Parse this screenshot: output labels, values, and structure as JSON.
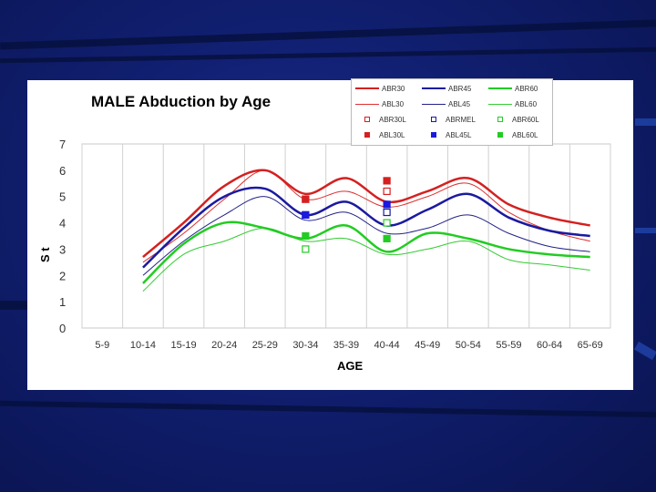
{
  "slide": {
    "background_color": "#101e6e",
    "panel_color": "#ffffff"
  },
  "chart_data": {
    "type": "line",
    "title": "MALE Abduction by Age",
    "xlabel": "AGE",
    "ylabel": "S\nt",
    "categories": [
      "5-9",
      "10-14",
      "15-19",
      "20-24",
      "25-29",
      "30-34",
      "35-39",
      "40-44",
      "45-49",
      "50-54",
      "55-59",
      "60-64",
      "65-69"
    ],
    "yticks": [
      0,
      1,
      2,
      3,
      4,
      5,
      6,
      7
    ],
    "ylim": [
      0,
      7
    ],
    "series": [
      {
        "name": "ABR30",
        "color": "#d42020",
        "width": 2.5,
        "values": [
          null,
          2.7,
          4.0,
          5.4,
          6.0,
          5.1,
          5.7,
          4.8,
          5.2,
          5.7,
          4.7,
          4.2,
          3.9
        ]
      },
      {
        "name": "ABR45",
        "color": "#1a1aa0",
        "width": 2.5,
        "values": [
          null,
          2.3,
          3.8,
          5.0,
          5.3,
          4.3,
          4.8,
          3.9,
          4.5,
          5.1,
          4.2,
          3.7,
          3.5
        ]
      },
      {
        "name": "ABR60",
        "color": "#22cc22",
        "width": 2.5,
        "values": [
          null,
          1.7,
          3.2,
          4.0,
          3.8,
          3.4,
          3.9,
          2.9,
          3.6,
          3.4,
          3.0,
          2.8,
          2.7
        ]
      },
      {
        "name": "ABL30",
        "color": "#dd3030",
        "width": 1,
        "values": [
          null,
          2.5,
          3.6,
          4.9,
          6.0,
          4.9,
          5.2,
          4.6,
          5.0,
          5.5,
          4.4,
          3.7,
          3.3
        ]
      },
      {
        "name": "ABL45",
        "color": "#222288",
        "width": 1,
        "values": [
          null,
          2.0,
          3.3,
          4.3,
          5.0,
          4.1,
          4.4,
          3.6,
          3.8,
          4.3,
          3.6,
          3.1,
          2.9
        ]
      },
      {
        "name": "ABL60",
        "color": "#33cc33",
        "width": 1,
        "values": [
          null,
          1.4,
          2.8,
          3.3,
          3.8,
          3.3,
          3.4,
          2.8,
          3.0,
          3.3,
          2.6,
          2.4,
          2.2
        ]
      }
    ],
    "points": [
      {
        "name": "ABR30L",
        "color": "#d42020",
        "filled": false,
        "category": "30-34",
        "value": 4.9
      },
      {
        "name": "ABR30L",
        "color": "#d42020",
        "filled": false,
        "category": "40-44",
        "value": 5.2
      },
      {
        "name": "ABRMEL",
        "color": "#1a1aa0",
        "filled": false,
        "category": "30-34",
        "value": 4.3
      },
      {
        "name": "ABRMEL",
        "color": "#1a1aa0",
        "filled": false,
        "category": "40-44",
        "value": 4.4
      },
      {
        "name": "ABR60L",
        "color": "#22cc22",
        "filled": false,
        "category": "30-34",
        "value": 3.0
      },
      {
        "name": "ABR60L",
        "color": "#22cc22",
        "filled": false,
        "category": "40-44",
        "value": 4.0
      },
      {
        "name": "ABL30L",
        "color": "#d42020",
        "filled": true,
        "category": "30-34",
        "value": 4.9
      },
      {
        "name": "ABL30L",
        "color": "#d42020",
        "filled": true,
        "category": "40-44",
        "value": 5.6
      },
      {
        "name": "ABL45L",
        "color": "#1a1ae0",
        "filled": true,
        "category": "30-34",
        "value": 4.3
      },
      {
        "name": "ABL45L",
        "color": "#1a1ae0",
        "filled": true,
        "category": "40-44",
        "value": 4.7
      },
      {
        "name": "ABL60L",
        "color": "#22cc22",
        "filled": true,
        "category": "30-34",
        "value": 3.5
      },
      {
        "name": "ABL60L",
        "color": "#22cc22",
        "filled": true,
        "category": "40-44",
        "value": 3.4
      }
    ],
    "legend": [
      {
        "label": "ABR30",
        "kind": "line",
        "color": "#d42020",
        "width": 2
      },
      {
        "label": "ABR45",
        "kind": "line",
        "color": "#1a1aa0",
        "width": 2
      },
      {
        "label": "ABR60",
        "kind": "line",
        "color": "#22cc22",
        "width": 2
      },
      {
        "label": "ABL30",
        "kind": "line",
        "color": "#dd3030",
        "width": 1
      },
      {
        "label": "ABL45",
        "kind": "line",
        "color": "#222288",
        "width": 1
      },
      {
        "label": "ABL60",
        "kind": "line",
        "color": "#33cc33",
        "width": 1
      },
      {
        "label": "ABR30L",
        "kind": "open",
        "color": "#d42020"
      },
      {
        "label": "ABRMEL",
        "kind": "open",
        "color": "#1a1aa0"
      },
      {
        "label": "ABR60L",
        "kind": "open",
        "color": "#22cc22"
      },
      {
        "label": "ABL30L",
        "kind": "filled",
        "color": "#d42020"
      },
      {
        "label": "ABL45L",
        "kind": "filled",
        "color": "#1a1ae0"
      },
      {
        "label": "ABL60L",
        "kind": "filled",
        "color": "#22cc22"
      }
    ]
  }
}
